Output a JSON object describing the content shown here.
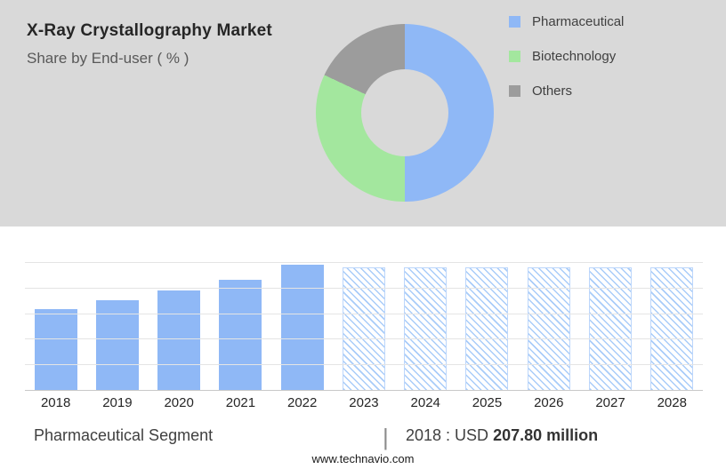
{
  "header": {
    "title": "X-Ray Crystallography Market",
    "subtitle": "Share by End-user ( % )"
  },
  "legend": {
    "items": [
      {
        "label": "Pharmaceutical",
        "color": "#8fb8f6"
      },
      {
        "label": "Biotechnology",
        "color": "#a3e79e"
      },
      {
        "label": "Others",
        "color": "#9c9c9c"
      }
    ]
  },
  "chart_data": [
    {
      "type": "pie",
      "donut": true,
      "title": "Share by End-user ( % )",
      "labels": [
        "Pharmaceutical",
        "Biotechnology",
        "Others"
      ],
      "values": [
        50,
        32,
        18
      ],
      "colors": [
        "#8fb8f6",
        "#a3e79e",
        "#9c9c9c"
      ],
      "legend_position": "right"
    },
    {
      "type": "bar",
      "title": "Pharmaceutical Segment",
      "categories": [
        "2018",
        "2019",
        "2020",
        "2021",
        "2022",
        "2023",
        "2024",
        "2025",
        "2026",
        "2027",
        "2028"
      ],
      "values": [
        63,
        70,
        78,
        86,
        98,
        96,
        96,
        96,
        96,
        96,
        96
      ],
      "values_unit": "relative_height_pct",
      "forecast_from": "2023",
      "solid_color": "#8fb8f6",
      "hatch_color": "#a9ccf9",
      "grid": true,
      "xlabel": "",
      "ylabel": "",
      "annotation": "2018 : USD 207.80 million"
    }
  ],
  "footer": {
    "segment_label": "Pharmaceutical Segment",
    "separator": "|",
    "value_prefix": "2018 : USD ",
    "value_bold": "207.80 million",
    "website": "www.technavio.com"
  }
}
